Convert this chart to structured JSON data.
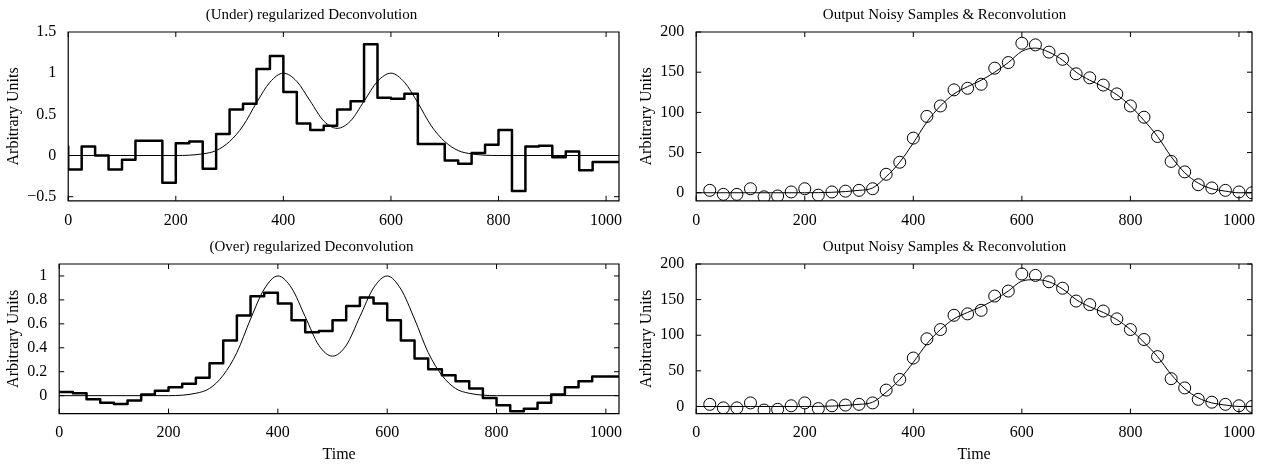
{
  "chart_data": [
    {
      "type": "line",
      "title": "(Under) regularized Deconvolution",
      "ylabel": "Arbitrary Units",
      "xlim": [
        0,
        1024
      ],
      "xticks": [
        0,
        200,
        400,
        600,
        800,
        1000
      ],
      "ylim": [
        -0.55,
        1.5
      ],
      "yticks": [
        {
          "value": -0.5,
          "label": "−0.5"
        },
        0,
        0.5,
        1,
        1.5
      ],
      "series": [
        {
          "type": "step",
          "color": "#000000",
          "x": [
            0,
            25,
            50,
            75,
            100,
            125,
            150,
            175,
            200,
            225,
            250,
            275,
            300,
            325,
            350,
            375,
            400,
            425,
            450,
            475,
            500,
            525,
            550,
            575,
            600,
            625,
            650,
            675,
            700,
            725,
            750,
            775,
            800,
            825,
            850,
            875,
            900,
            925,
            950,
            975,
            1000,
            1024
          ],
          "values": [
            0.12,
            -0.17,
            0.11,
            0.0,
            -0.17,
            -0.05,
            0.18,
            0.18,
            -0.33,
            0.15,
            0.17,
            -0.16,
            0.26,
            0.56,
            0.63,
            1.05,
            1.21,
            0.77,
            0.39,
            0.31,
            0.36,
            0.56,
            0.66,
            1.35,
            0.7,
            0.69,
            0.75,
            0.14,
            0.14,
            -0.06,
            -0.1,
            0.03,
            0.13,
            0.31,
            -0.43,
            0.11,
            0.12,
            -0.02,
            0.05,
            -0.18,
            -0.08,
            -0.08
          ]
        },
        {
          "color": "#000000",
          "x": [
            0,
            100,
            200,
            250,
            275,
            300,
            325,
            350,
            375,
            400,
            425,
            450,
            475,
            500,
            525,
            550,
            575,
            600,
            625,
            650,
            675,
            700,
            725,
            750,
            800,
            900,
            1024
          ],
          "values": [
            0,
            0,
            0,
            0.02,
            0.06,
            0.17,
            0.36,
            0.64,
            0.89,
            1.0,
            0.9,
            0.66,
            0.42,
            0.33,
            0.42,
            0.66,
            0.9,
            1.0,
            0.89,
            0.64,
            0.36,
            0.17,
            0.06,
            0.02,
            0,
            0,
            0
          ]
        }
      ]
    },
    {
      "type": "line",
      "title": "Output Noisy Samples & Reconvolution",
      "ylabel": "Arbitrary Units",
      "xlim": [
        0,
        1024
      ],
      "xticks": [
        0,
        200,
        400,
        600,
        800,
        1000
      ],
      "ylim": [
        -10,
        200
      ],
      "yticks": [
        0,
        50,
        100,
        150,
        200
      ],
      "series": [
        {
          "type": "scatter",
          "marker": "circle",
          "color": "#000000",
          "x": [
            25,
            50,
            75,
            100,
            125,
            150,
            175,
            200,
            225,
            250,
            275,
            300,
            325,
            350,
            375,
            400,
            425,
            450,
            475,
            500,
            525,
            550,
            575,
            600,
            625,
            650,
            675,
            700,
            725,
            750,
            775,
            800,
            825,
            850,
            875,
            900,
            925,
            950,
            975,
            1000,
            1024
          ],
          "values": [
            3,
            -2,
            -2,
            5,
            -5,
            -4,
            1,
            5,
            -3,
            1,
            2,
            3,
            5,
            23,
            38,
            68,
            95,
            108,
            128,
            130,
            135,
            155,
            162,
            186,
            184,
            175,
            166,
            148,
            143,
            134,
            123,
            108,
            94,
            70,
            39,
            26,
            10,
            6,
            3,
            1,
            0
          ]
        },
        {
          "color": "#000000",
          "x": [
            0,
            100,
            200,
            300,
            325,
            350,
            375,
            400,
            425,
            450,
            475,
            500,
            525,
            550,
            575,
            600,
            625,
            650,
            675,
            700,
            725,
            750,
            775,
            800,
            825,
            850,
            875,
            900,
            925,
            950,
            975,
            1000,
            1024
          ],
          "values": [
            0,
            0,
            0,
            3,
            6,
            20,
            38,
            62,
            88,
            108,
            123,
            132,
            140,
            150,
            162,
            176,
            180,
            175,
            165,
            150,
            140,
            132,
            122,
            108,
            90,
            70,
            45,
            25,
            12,
            5,
            2,
            0,
            0
          ]
        }
      ]
    },
    {
      "type": "line",
      "title": "(Over) regularized Deconvolution",
      "xlabel": "Time",
      "ylabel": "Arbitrary Units",
      "xlim": [
        0,
        1024
      ],
      "xticks": [
        0,
        200,
        400,
        600,
        800,
        1000
      ],
      "ylim": [
        -0.15,
        1.1
      ],
      "yticks": [
        0,
        0.2,
        0.4,
        0.6,
        0.8,
        1
      ],
      "series": [
        {
          "type": "step",
          "color": "#000000",
          "x": [
            0,
            25,
            50,
            75,
            100,
            125,
            150,
            175,
            200,
            225,
            250,
            275,
            300,
            325,
            350,
            375,
            400,
            425,
            450,
            475,
            500,
            525,
            550,
            575,
            600,
            625,
            650,
            675,
            700,
            725,
            750,
            775,
            800,
            825,
            850,
            875,
            900,
            925,
            950,
            975,
            1000,
            1024
          ],
          "values": [
            0.02,
            0.03,
            0.02,
            -0.03,
            -0.06,
            -0.07,
            -0.04,
            0.01,
            0.04,
            0.07,
            0.1,
            0.15,
            0.27,
            0.46,
            0.67,
            0.83,
            0.86,
            0.77,
            0.63,
            0.53,
            0.54,
            0.63,
            0.75,
            0.82,
            0.77,
            0.63,
            0.46,
            0.31,
            0.22,
            0.17,
            0.12,
            0.06,
            -0.02,
            -0.08,
            -0.13,
            -0.11,
            -0.06,
            0.01,
            0.07,
            0.12,
            0.16,
            0.16
          ]
        },
        {
          "color": "#000000",
          "x": [
            0,
            100,
            200,
            250,
            275,
            300,
            325,
            350,
            375,
            400,
            425,
            450,
            475,
            500,
            525,
            550,
            575,
            600,
            625,
            650,
            675,
            700,
            725,
            750,
            800,
            900,
            1024
          ],
          "values": [
            0,
            0,
            0,
            0.02,
            0.06,
            0.17,
            0.36,
            0.64,
            0.89,
            1.0,
            0.9,
            0.66,
            0.42,
            0.33,
            0.42,
            0.66,
            0.9,
            1.0,
            0.89,
            0.64,
            0.36,
            0.17,
            0.06,
            0.02,
            0,
            0,
            0
          ]
        }
      ]
    },
    {
      "type": "line",
      "title": "Output Noisy Samples & Reconvolution",
      "xlabel": "Time",
      "ylabel": "Arbitrary Units",
      "xlim": [
        0,
        1024
      ],
      "xticks": [
        0,
        200,
        400,
        600,
        800,
        1000
      ],
      "ylim": [
        -10,
        200
      ],
      "yticks": [
        0,
        50,
        100,
        150,
        200
      ],
      "series": [
        {
          "type": "scatter",
          "marker": "circle",
          "color": "#000000",
          "x": [
            25,
            50,
            75,
            100,
            125,
            150,
            175,
            200,
            225,
            250,
            275,
            300,
            325,
            350,
            375,
            400,
            425,
            450,
            475,
            500,
            525,
            550,
            575,
            600,
            625,
            650,
            675,
            700,
            725,
            750,
            775,
            800,
            825,
            850,
            875,
            900,
            925,
            950,
            975,
            1000,
            1024
          ],
          "values": [
            3,
            -2,
            -2,
            5,
            -5,
            -4,
            1,
            5,
            -3,
            1,
            2,
            3,
            5,
            23,
            38,
            68,
            95,
            108,
            128,
            130,
            135,
            155,
            162,
            186,
            184,
            175,
            166,
            148,
            143,
            134,
            123,
            108,
            94,
            70,
            39,
            26,
            10,
            6,
            3,
            1,
            0
          ]
        },
        {
          "color": "#000000",
          "x": [
            0,
            100,
            200,
            300,
            325,
            350,
            375,
            400,
            425,
            450,
            475,
            500,
            525,
            550,
            575,
            600,
            625,
            650,
            675,
            700,
            725,
            750,
            775,
            800,
            825,
            850,
            875,
            900,
            925,
            950,
            975,
            1000,
            1024
          ],
          "values": [
            0,
            0,
            0,
            3,
            6,
            20,
            38,
            62,
            88,
            108,
            123,
            132,
            140,
            150,
            162,
            176,
            178,
            175,
            165,
            150,
            140,
            132,
            122,
            108,
            90,
            70,
            45,
            25,
            12,
            5,
            2,
            0,
            0
          ]
        }
      ]
    }
  ]
}
